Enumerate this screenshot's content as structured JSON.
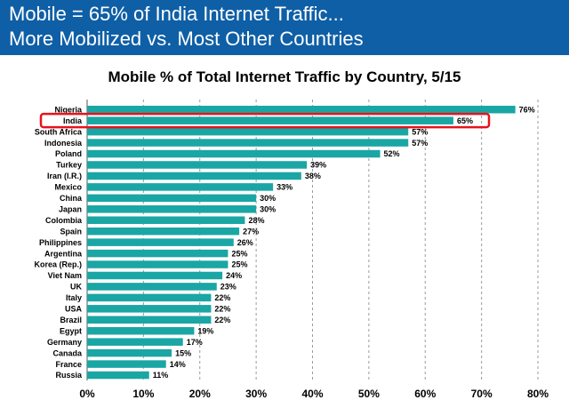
{
  "header": {
    "line1": "Mobile = 65% of India Internet Traffic...",
    "line2": "More Mobilized vs. Most Other Countries"
  },
  "colors": {
    "header_bg": "#0f5fa6",
    "bar": "#1aa6a4",
    "highlight": "#e8121d"
  },
  "chart_data": {
    "type": "bar",
    "orientation": "horizontal",
    "title": "Mobile % of Total Internet Traffic by Country, 5/15",
    "categories": [
      "Nigeria",
      "India",
      "South Africa",
      "Indonesia",
      "Poland",
      "Turkey",
      "Iran (I.R.)",
      "Mexico",
      "China",
      "Japan",
      "Colombia",
      "Spain",
      "Philippines",
      "Argentina",
      "Korea (Rep.)",
      "Viet Nam",
      "UK",
      "Italy",
      "USA",
      "Brazil",
      "Egypt",
      "Germany",
      "Canada",
      "France",
      "Russia"
    ],
    "values": [
      76,
      65,
      57,
      57,
      52,
      39,
      38,
      33,
      30,
      30,
      28,
      27,
      26,
      25,
      25,
      24,
      23,
      22,
      22,
      22,
      19,
      17,
      15,
      14,
      11
    ],
    "value_labels": [
      "76%",
      "65%",
      "57%",
      "57%",
      "52%",
      "39%",
      "38%",
      "33%",
      "30%",
      "30%",
      "28%",
      "27%",
      "26%",
      "25%",
      "25%",
      "24%",
      "23%",
      "22%",
      "22%",
      "22%",
      "19%",
      "17%",
      "15%",
      "14%",
      "11%"
    ],
    "xticks": [
      "0%",
      "10%",
      "20%",
      "30%",
      "40%",
      "50%",
      "60%",
      "70%",
      "80%"
    ],
    "xlim": [
      0,
      80
    ],
    "grid": true,
    "highlighted_category": "India"
  }
}
